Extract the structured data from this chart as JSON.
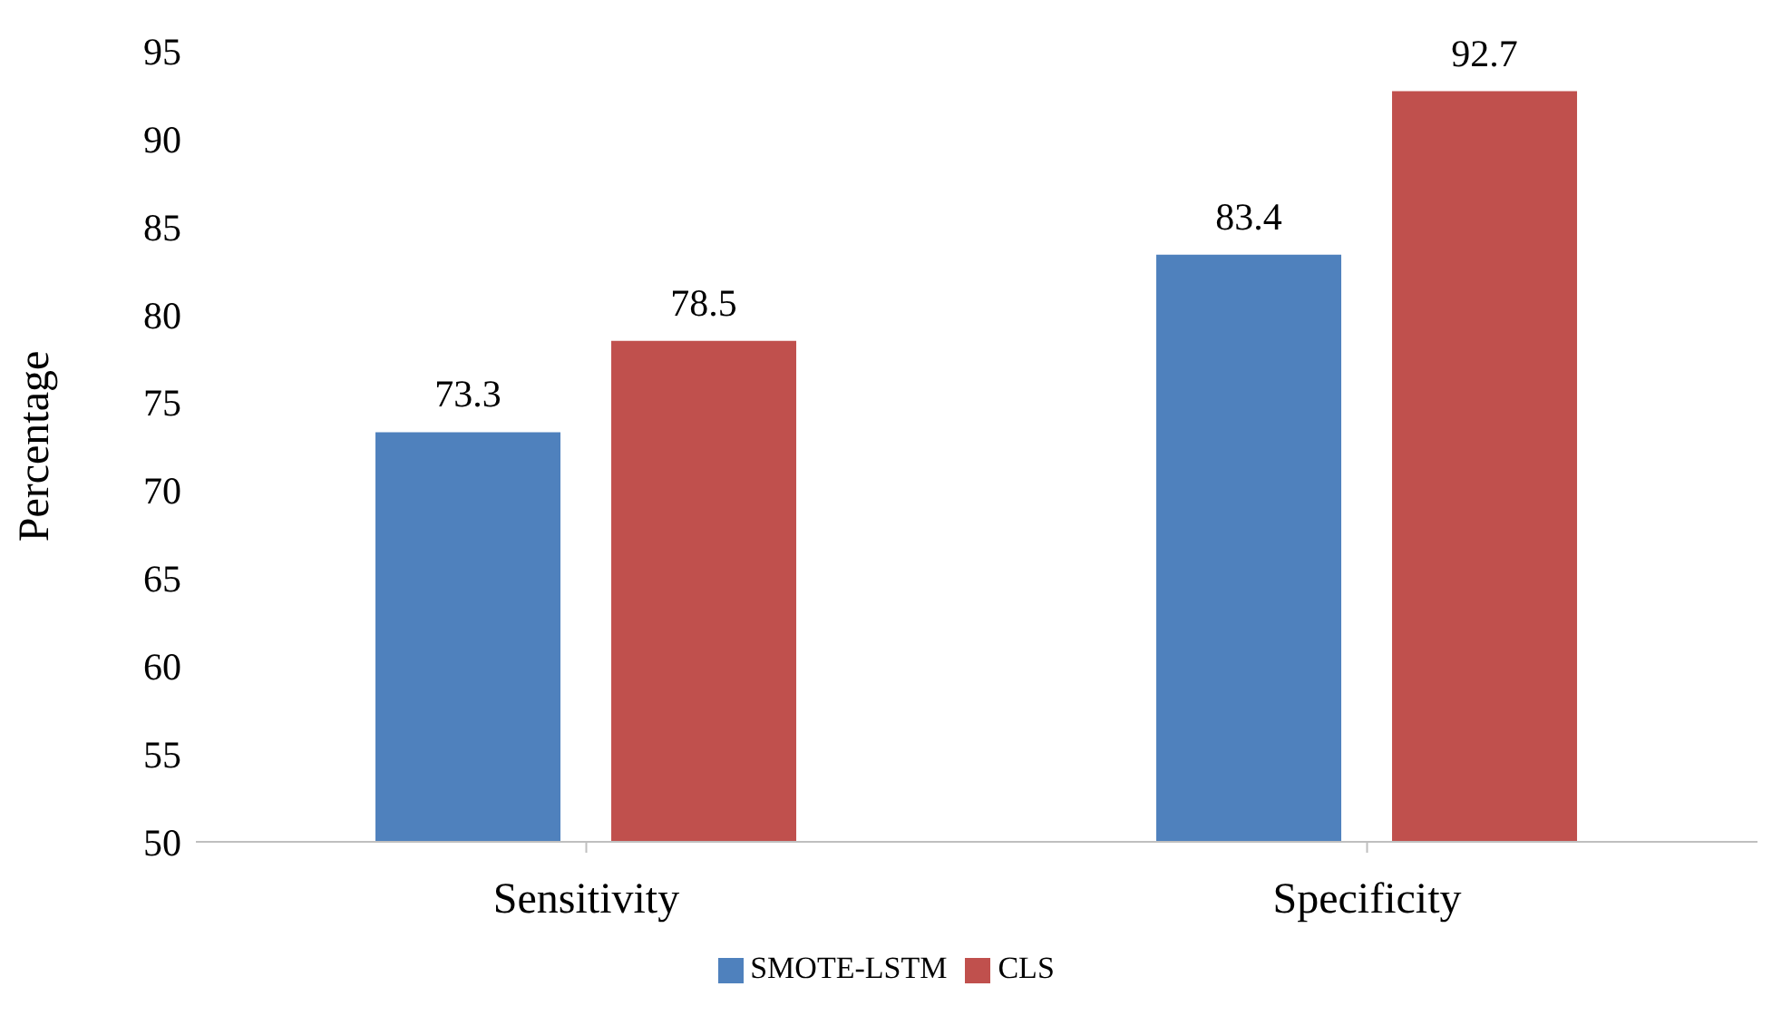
{
  "chart_data": {
    "type": "bar",
    "ylabel": "Percentage",
    "categories": [
      "Sensitivity",
      "Specificity"
    ],
    "series": [
      {
        "name": "SMOTE-LSTM",
        "color": "#4f81bd",
        "values": [
          73.3,
          83.4
        ]
      },
      {
        "name": "CLS",
        "color": "#c0504d",
        "values": [
          78.5,
          92.7
        ]
      }
    ],
    "ylim": [
      50,
      95
    ],
    "yticks": [
      50,
      55,
      60,
      65,
      70,
      75,
      80,
      85,
      90,
      95
    ],
    "data_labels": true,
    "legend": "bottom"
  }
}
